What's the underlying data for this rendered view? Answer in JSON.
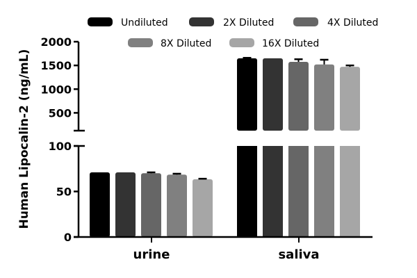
{
  "chart_data": {
    "type": "bar",
    "title": "",
    "xlabel": "",
    "ylabel": "Human Lipocalin-2 (ng/mL)",
    "categories": [
      "urine",
      "saliva"
    ],
    "series": [
      {
        "name": "Undiluted",
        "color": "#000000",
        "values": [
          71,
          1650
        ],
        "errors": [
          0,
          10
        ]
      },
      {
        "name": "2X Diluted",
        "color": "#333333",
        "values": [
          71,
          1650
        ],
        "errors": [
          0,
          0
        ]
      },
      {
        "name": "4X Diluted",
        "color": "#666666",
        "values": [
          70,
          1575
        ],
        "errors": [
          1,
          55
        ]
      },
      {
        "name": "8X Diluted",
        "color": "#808080",
        "values": [
          68.5,
          1520
        ],
        "errors": [
          1,
          100
        ]
      },
      {
        "name": "16X Diluted",
        "color": "#a6a6a6",
        "values": [
          63.5,
          1470
        ],
        "errors": [
          0.5,
          30
        ]
      }
    ],
    "y_axis_segments": [
      {
        "range": [
          0,
          100
        ],
        "ticks": [
          "0",
          "50",
          "100"
        ]
      },
      {
        "range": [
          125,
          2000
        ],
        "ticks": [
          "500",
          "1000",
          "1500",
          "2000"
        ]
      }
    ],
    "axis_break": true,
    "grid": false,
    "legend_position": "top"
  }
}
